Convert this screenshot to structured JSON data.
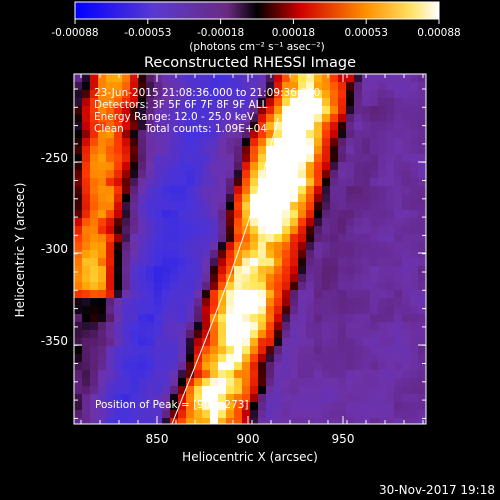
{
  "colorbar": {
    "ticks": [
      "-0.00088",
      "-0.00053",
      "-0.00018",
      "0.00018",
      "0.00053",
      "0.00088"
    ],
    "unit_label": "(photons cm⁻² s⁻¹ asec⁻²)"
  },
  "plot": {
    "title": "Reconstructed RHESSI Image",
    "xlabel": "Heliocentric X (arcsec)",
    "ylabel": "Heliocentric Y (arcsec)",
    "x_ticks": [
      "850",
      "900",
      "950"
    ],
    "y_ticks": [
      "-250",
      "-300",
      "-350"
    ],
    "xlim": [
      808,
      993
    ],
    "ylim": [
      -395,
      -201
    ]
  },
  "annotations": {
    "time": "23-Jun-2015 21:08:36.000 to 21:09:36.000",
    "detectors": "Detectors: 3F 5F 6F 7F 8F 9F ALL",
    "energy": "Energy Range: 12.0 - 25.0 keV",
    "method": "Clean",
    "counts": "Total counts: 1.09E+04",
    "peak": "Position of Peak = [907,-273]"
  },
  "footer": {
    "date": "30-Nov-2017 19:18"
  },
  "colors": {
    "background": "#000000",
    "colormap": [
      "#0000ff",
      "#5a3ad0",
      "#7a3aa0",
      "#000000",
      "#ff0000",
      "#ffb000",
      "#ffffff"
    ]
  }
}
